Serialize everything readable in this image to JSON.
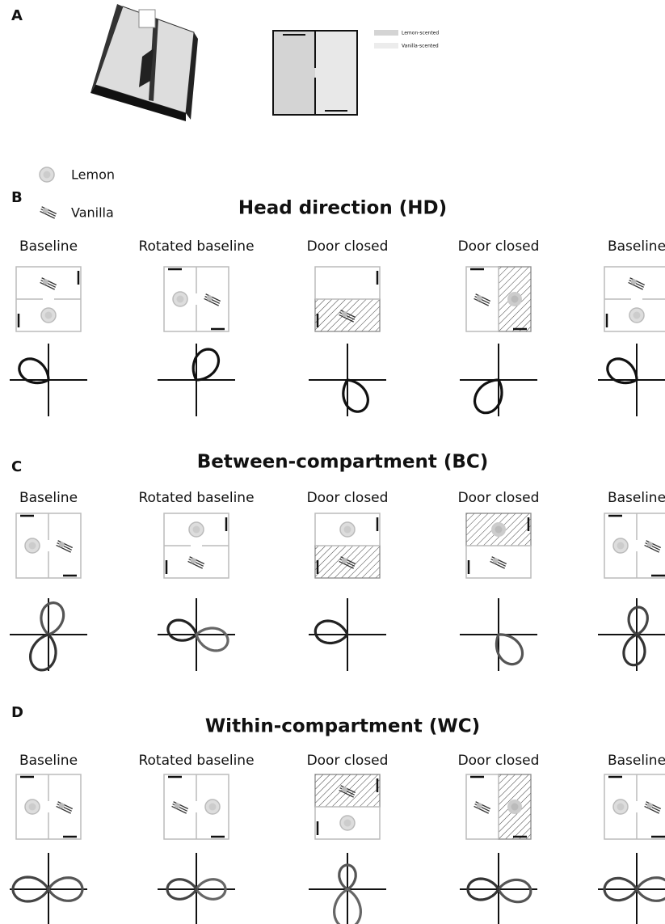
{
  "panel_a": {
    "label": "A",
    "legend": [
      "Lemon-scented",
      "Vanilla-scented"
    ]
  },
  "odor_legend": [
    "Lemon",
    "Vanilla"
  ],
  "rows": [
    {
      "label": "B",
      "title": "Head direction (HD)",
      "panels": [
        "Baseline",
        "Rotated baseline",
        "Door closed",
        "Door closed",
        "Baseline"
      ]
    },
    {
      "label": "C",
      "title": "Between-compartment (BC)",
      "panels": [
        "Baseline",
        "Rotated baseline",
        "Door closed",
        "Door closed",
        "Baseline"
      ]
    },
    {
      "label": "D",
      "title": "Within-compartment (WC)",
      "panels": [
        "Baseline",
        "Rotated baseline",
        "Door closed",
        "Door closed",
        "Baseline"
      ]
    }
  ]
}
